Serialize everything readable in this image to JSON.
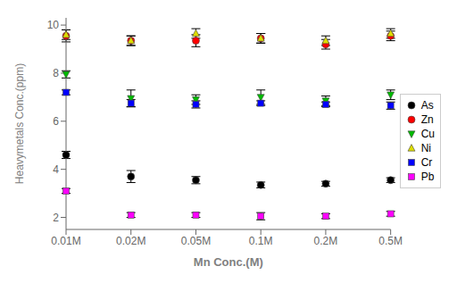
{
  "chart_data": {
    "type": "scatter",
    "categories": [
      "0.01M",
      "0.02M",
      "0.05M",
      "0.1M",
      "0.2M",
      "0.5M"
    ],
    "series": [
      {
        "name": "As",
        "color": "black",
        "marker": "circle",
        "values": [
          4.6,
          3.7,
          3.55,
          3.35,
          3.4,
          3.55
        ],
        "errors": [
          0.15,
          0.25,
          0.15,
          0.12,
          0.1,
          0.1
        ]
      },
      {
        "name": "Zn",
        "color": "red",
        "marker": "circle",
        "values": [
          9.55,
          9.35,
          9.35,
          9.45,
          9.2,
          9.55
        ],
        "errors": [
          0.25,
          0.2,
          0.25,
          0.2,
          0.2,
          0.2
        ]
      },
      {
        "name": "Cu",
        "color": "#00bb00",
        "marker": "triangle-down",
        "values": [
          7.95,
          6.95,
          6.9,
          7.0,
          6.85,
          7.1
        ],
        "errors": [
          0.15,
          0.35,
          0.2,
          0.3,
          0.2,
          0.2
        ]
      },
      {
        "name": "Ni",
        "color": "#dddd00",
        "marker": "triangle",
        "values": [
          9.6,
          9.35,
          9.65,
          9.45,
          9.35,
          9.65
        ],
        "errors": [
          0.2,
          0.2,
          0.2,
          0.2,
          0.2,
          0.2
        ]
      },
      {
        "name": "Cr",
        "color": "blue",
        "marker": "square",
        "values": [
          7.2,
          6.75,
          6.7,
          6.75,
          6.7,
          6.65
        ],
        "errors": [
          0.1,
          0.15,
          0.15,
          0.1,
          0.1,
          0.15
        ]
      },
      {
        "name": "Pb",
        "color": "magenta",
        "marker": "square",
        "values": [
          3.1,
          2.1,
          2.1,
          2.05,
          2.05,
          2.15
        ],
        "errors": [
          0.1,
          0.1,
          0.1,
          0.15,
          0.1,
          0.1
        ]
      }
    ],
    "ylabel": "Heavymetals Conc.(ppm)",
    "xlabel": "Mn Conc.(M)",
    "ylim": [
      1.5,
      10.3
    ],
    "yticks": [
      2,
      4,
      6,
      8,
      10
    ],
    "grid": false,
    "legend": "right"
  }
}
